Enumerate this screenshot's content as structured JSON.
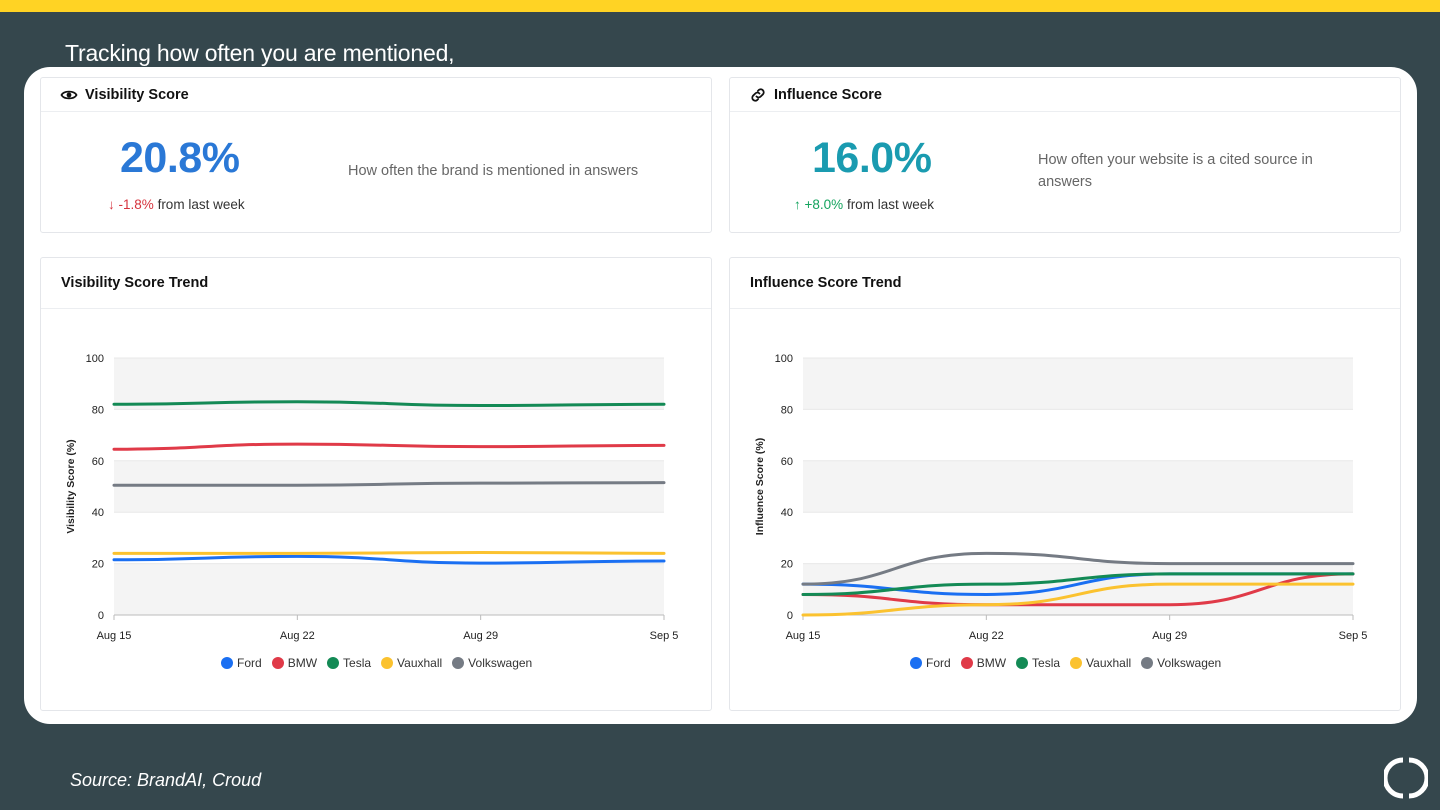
{
  "headline": "Tracking how often you are mentioned,",
  "source": "Source: BrandAI, Croud",
  "colors": {
    "ford": "#1a6ff2",
    "bmw": "#e03a48",
    "tesla": "#138a55",
    "vauxhall": "#fbc22f",
    "volkswagen": "#757b84",
    "visibility_accent": "#2a78d6",
    "influence_accent": "#1a9bb0",
    "down": "#d6333d",
    "up": "#14a35e"
  },
  "visibility_card": {
    "title": "Visibility Score",
    "icon": "eye-icon",
    "value": "20.8%",
    "change_arrow": "↓",
    "change_value": "-1.8%",
    "change_suffix": "from last week",
    "description": "How often the brand is mentioned in answers"
  },
  "influence_card": {
    "title": "Influence Score",
    "icon": "link-icon",
    "value": "16.0%",
    "change_arrow": "↑",
    "change_value": "+8.0%",
    "change_suffix": "from last week",
    "description": "How often your website is a cited source in answers"
  },
  "visibility_trend": {
    "title": "Visibility Score Trend"
  },
  "influence_trend": {
    "title": "Influence Score Trend"
  },
  "chart_data": [
    {
      "type": "line",
      "title": "Visibility Score Trend",
      "ylabel": "Visibility Score (%)",
      "xlabel": "",
      "x": [
        "Aug 15",
        "Aug 22",
        "Aug 29",
        "Sep 5"
      ],
      "ylim": [
        0,
        100
      ],
      "yticks": [
        0,
        20,
        40,
        60,
        80,
        100
      ],
      "grid": "alternating horizontal bands",
      "legend": "bottom-center",
      "series": [
        {
          "name": "Ford",
          "color": "#1a6ff2",
          "values": [
            21.5,
            22.8,
            20.2,
            21
          ]
        },
        {
          "name": "BMW",
          "color": "#e03a48",
          "values": [
            64.5,
            66.5,
            65.5,
            66
          ]
        },
        {
          "name": "Tesla",
          "color": "#138a55",
          "values": [
            82,
            83,
            81.5,
            82
          ]
        },
        {
          "name": "Vauxhall",
          "color": "#fbc22f",
          "values": [
            24,
            24,
            24.3,
            24
          ]
        },
        {
          "name": "Volkswagen",
          "color": "#757b84",
          "values": [
            50.5,
            50.5,
            51.3,
            51.5
          ]
        }
      ]
    },
    {
      "type": "line",
      "title": "Influence Score Trend",
      "ylabel": "Influence Score (%)",
      "xlabel": "",
      "x": [
        "Aug 15",
        "Aug 22",
        "Aug 29",
        "Sep 5"
      ],
      "ylim": [
        0,
        100
      ],
      "yticks": [
        0,
        20,
        40,
        60,
        80,
        100
      ],
      "grid": "alternating horizontal bands",
      "legend": "bottom-center",
      "series": [
        {
          "name": "Ford",
          "color": "#1a6ff2",
          "values": [
            12,
            8,
            16,
            16
          ]
        },
        {
          "name": "BMW",
          "color": "#e03a48",
          "values": [
            8,
            4,
            4,
            16
          ]
        },
        {
          "name": "Tesla",
          "color": "#138a55",
          "values": [
            8,
            12,
            16,
            16
          ]
        },
        {
          "name": "Vauxhall",
          "color": "#fbc22f",
          "values": [
            0,
            4,
            12,
            12
          ]
        },
        {
          "name": "Volkswagen",
          "color": "#757b84",
          "values": [
            12,
            24,
            20,
            20
          ]
        }
      ]
    }
  ]
}
